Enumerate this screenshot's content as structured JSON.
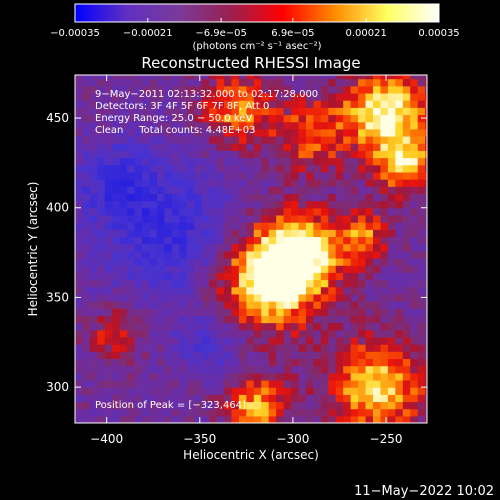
{
  "chart_data": {
    "type": "heatmap",
    "title": "Reconstructed RHESSI Image",
    "xlabel": "Heliocentric X (arcsec)",
    "ylabel": "Heliocentric Y (arcsec)",
    "xlim": [
      -417,
      -228
    ],
    "ylim": [
      280,
      474
    ],
    "xticks": [
      {
        "value": -400,
        "label": "−400"
      },
      {
        "value": -350,
        "label": "−350"
      },
      {
        "value": -300,
        "label": "−300"
      },
      {
        "value": -250,
        "label": "−250"
      }
    ],
    "yticks": [
      {
        "value": 300,
        "label": "300"
      },
      {
        "value": 350,
        "label": "350"
      },
      {
        "value": 400,
        "label": "400"
      },
      {
        "value": 450,
        "label": "450"
      }
    ],
    "colorbar": {
      "range": [
        -0.00035,
        0.00035
      ],
      "ticks": [
        {
          "value": -0.00035,
          "label": "−0.00035"
        },
        {
          "value": -0.00021,
          "label": "−0.00021"
        },
        {
          "value": -6.9e-05,
          "label": "−6.9e−05"
        },
        {
          "value": 6.9e-05,
          "label": "6.9e−05"
        },
        {
          "value": 0.00021,
          "label": "0.00021"
        },
        {
          "value": 0.00035,
          "label": "0.00035"
        }
      ],
      "unit_label": "(photons cm⁻² s⁻¹ asec⁻²)",
      "colors": [
        "#0000ff",
        "#6030c0",
        "#7a3a9a",
        "#9a2050",
        "#ff0000",
        "#ff8c00",
        "#ffff60",
        "#ffffff"
      ]
    },
    "annotations": [
      "9−May−2011 02:13:32.000 to 02:17:28.000",
      "Detectors: 3F 4F 5F 6F 7F 8F, Att 0",
      "Energy Range: 25.0 − 50.0 keV",
      "Clean     Total counts: 4.48E+03"
    ],
    "peak_text": "Position of Peak = [−323,464]",
    "peak": {
      "x": -323,
      "y": 464
    },
    "hotspots": [
      {
        "x": -315,
        "y": 360,
        "sigma": 20,
        "amp": 1.0
      },
      {
        "x": -295,
        "y": 375,
        "sigma": 16,
        "amp": 0.8
      },
      {
        "x": -250,
        "y": 455,
        "sigma": 16,
        "amp": 0.95
      },
      {
        "x": -240,
        "y": 425,
        "sigma": 12,
        "amp": 0.75
      },
      {
        "x": -262,
        "y": 385,
        "sigma": 10,
        "amp": 0.55
      },
      {
        "x": -320,
        "y": 290,
        "sigma": 12,
        "amp": 0.7
      },
      {
        "x": -255,
        "y": 300,
        "sigma": 18,
        "amp": 0.85
      },
      {
        "x": -330,
        "y": 455,
        "sigma": 14,
        "amp": 0.65
      },
      {
        "x": -290,
        "y": 440,
        "sigma": 14,
        "amp": 0.55
      },
      {
        "x": -395,
        "y": 330,
        "sigma": 10,
        "amp": 0.45
      }
    ],
    "coldspots": [
      {
        "x": -365,
        "y": 385,
        "sigma": 26,
        "amp": 0.6
      },
      {
        "x": -395,
        "y": 415,
        "sigma": 16,
        "amp": 0.5
      },
      {
        "x": -345,
        "y": 325,
        "sigma": 12,
        "amp": 0.45
      }
    ]
  },
  "timestamp": "11−May−2022 10:02"
}
